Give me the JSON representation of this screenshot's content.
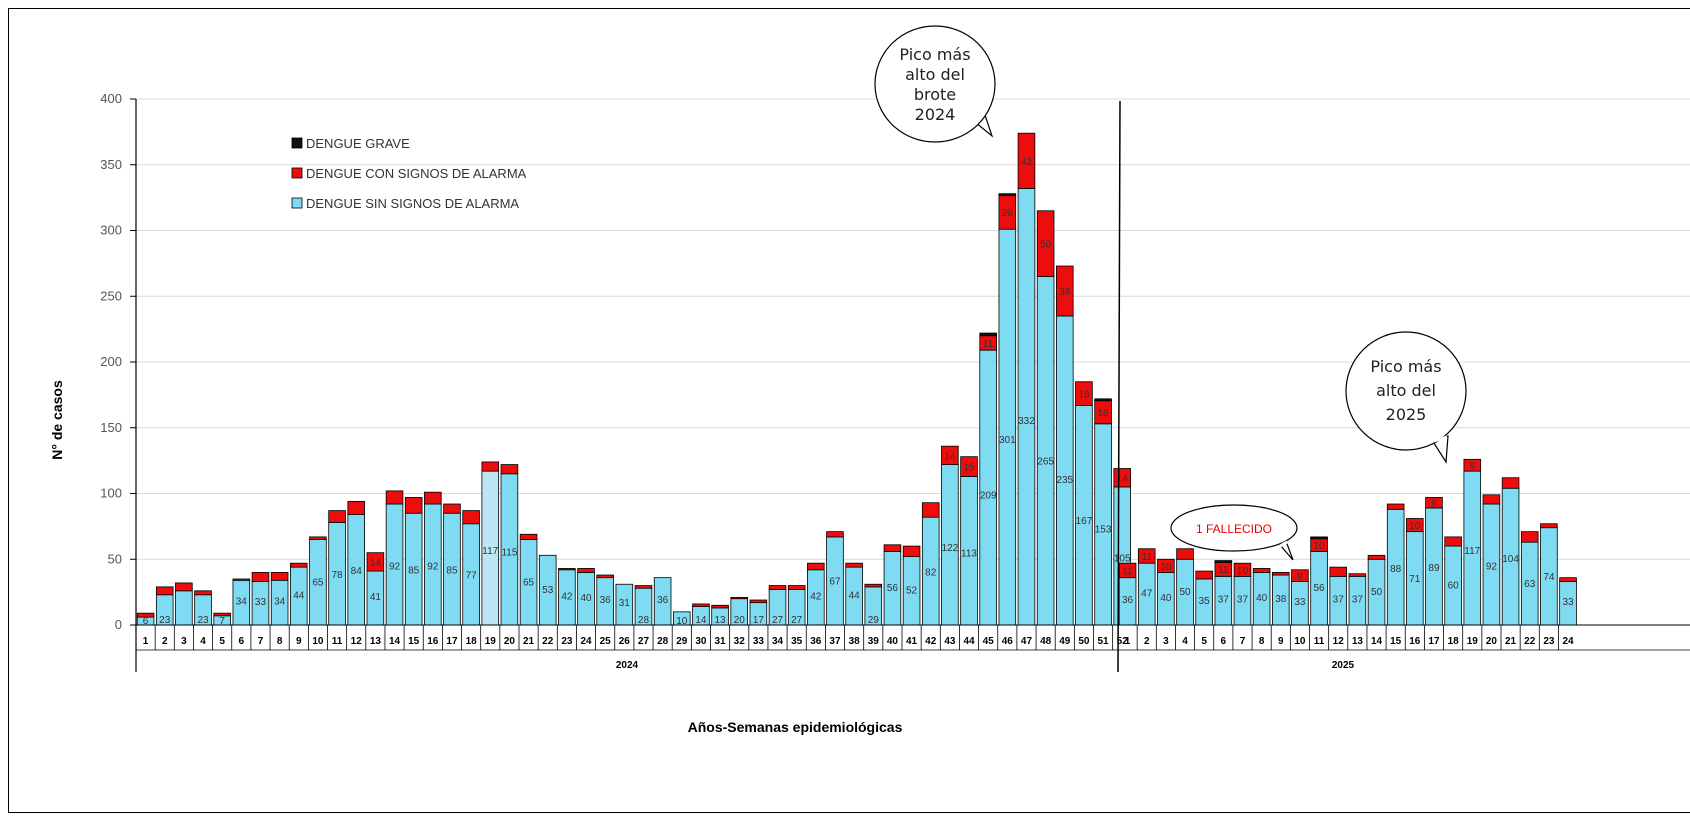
{
  "chart_data": {
    "type": "bar",
    "stacked": true,
    "ylabel": "N° de casos",
    "xlabel": "Años-Semanas epidemiológicas",
    "ylim": [
      0,
      400
    ],
    "yticks": [
      0,
      50,
      100,
      150,
      200,
      250,
      300,
      350,
      400
    ],
    "grid": true,
    "legend_position": "top-left",
    "colors": {
      "sin": "#7fdbf2",
      "con": "#ee0d0d",
      "grave": "#111111",
      "sin_highlight": "#bde6f5"
    },
    "series": [
      {
        "key": "grave",
        "name": "DENGUE GRAVE"
      },
      {
        "key": "con",
        "name": "DENGUE CON SIGNOS DE ALARMA"
      },
      {
        "key": "sin",
        "name": "DENGUE SIN SIGNOS DE ALARMA"
      }
    ],
    "years": [
      {
        "year": "2024",
        "weeks": [
          "1",
          "2",
          "3",
          "4",
          "5",
          "6",
          "7",
          "8",
          "9",
          "10",
          "11",
          "12",
          "13",
          "14",
          "15",
          "16",
          "17",
          "18",
          "19",
          "20",
          "21",
          "22",
          "23",
          "24",
          "25",
          "26",
          "27",
          "28",
          "29",
          "30",
          "31",
          "32",
          "33",
          "34",
          "35",
          "36",
          "37",
          "38",
          "39",
          "40",
          "41",
          "42",
          "43",
          "44",
          "45",
          "46",
          "47",
          "48",
          "49",
          "50",
          "51",
          "52"
        ],
        "sin": [
          6,
          23,
          26,
          23,
          7,
          34,
          33,
          34,
          44,
          65,
          78,
          84,
          41,
          92,
          85,
          92,
          85,
          77,
          117,
          115,
          65,
          53,
          42,
          40,
          36,
          31,
          28,
          36,
          10,
          14,
          13,
          20,
          17,
          27,
          27,
          42,
          67,
          44,
          29,
          56,
          52,
          82,
          122,
          113,
          209,
          301,
          332,
          265,
          235,
          167,
          153,
          105
        ],
        "con": [
          3,
          6,
          6,
          3,
          2,
          1,
          7,
          6,
          3,
          2,
          9,
          10,
          14,
          10,
          12,
          9,
          7,
          10,
          7,
          7,
          4,
          0,
          1,
          3,
          2,
          0,
          2,
          0,
          0,
          2,
          2,
          1,
          2,
          3,
          3,
          5,
          4,
          3,
          2,
          5,
          8,
          11,
          14,
          15,
          11,
          26,
          42,
          50,
          38,
          18,
          18,
          14
        ],
        "grave": [
          0,
          0,
          0,
          0,
          0,
          0,
          0,
          0,
          0,
          0,
          0,
          0,
          0,
          0,
          0,
          0,
          0,
          0,
          0,
          0,
          0,
          0,
          0,
          0,
          0,
          0,
          0,
          0,
          0,
          0,
          0,
          0,
          0,
          0,
          0,
          0,
          0,
          0,
          0,
          0,
          0,
          0,
          0,
          0,
          2,
          1,
          0,
          0,
          0,
          0,
          1,
          0
        ],
        "sin_label_override": {
          "1": "6",
          "3": "",
          "6": "34",
          "22": "53"
        },
        "highlight_week": "19"
      },
      {
        "year": "2025",
        "weeks": [
          "1",
          "2",
          "3",
          "4",
          "5",
          "6",
          "7",
          "8",
          "9",
          "10",
          "11",
          "12",
          "13",
          "14",
          "15",
          "16",
          "17",
          "18",
          "19",
          "20",
          "21",
          "22",
          "23",
          "24"
        ],
        "sin": [
          36,
          47,
          40,
          50,
          35,
          37,
          37,
          40,
          38,
          33,
          56,
          37,
          37,
          50,
          88,
          71,
          89,
          60,
          117,
          92,
          104,
          63,
          74,
          33
        ],
        "con": [
          11,
          11,
          10,
          8,
          6,
          11,
          10,
          3,
          2,
          9,
          10,
          7,
          2,
          3,
          4,
          10,
          8,
          7,
          9,
          7,
          8,
          8,
          3,
          3
        ],
        "grave": [
          0,
          0,
          0,
          0,
          0,
          1,
          0,
          0,
          0,
          0,
          1,
          0,
          0,
          0,
          0,
          0,
          0,
          0,
          0,
          0,
          0,
          0,
          0,
          0
        ]
      }
    ],
    "con_labels": {
      "2024": {
        "13": "14",
        "43": "14",
        "44": "15",
        "45": "11",
        "46": "26",
        "47": "42",
        "48": "50",
        "49": "38",
        "50": "18",
        "51": "18",
        "52": "14"
      },
      "2025": {
        "1": "11",
        "2": "11",
        "3": "10",
        "6": "11",
        "7": "10",
        "10": "9",
        "11": "10",
        "16": "10",
        "17": "8",
        "19": "9"
      }
    },
    "annotations": [
      {
        "id": "peak2024",
        "lines": [
          "Pico más",
          "alto del",
          "brote",
          "2024"
        ]
      },
      {
        "id": "peak2025",
        "lines": [
          "Pico más",
          "alto del",
          "2025"
        ]
      },
      {
        "id": "death",
        "lines": [
          "1 FALLECIDO"
        ]
      }
    ]
  }
}
